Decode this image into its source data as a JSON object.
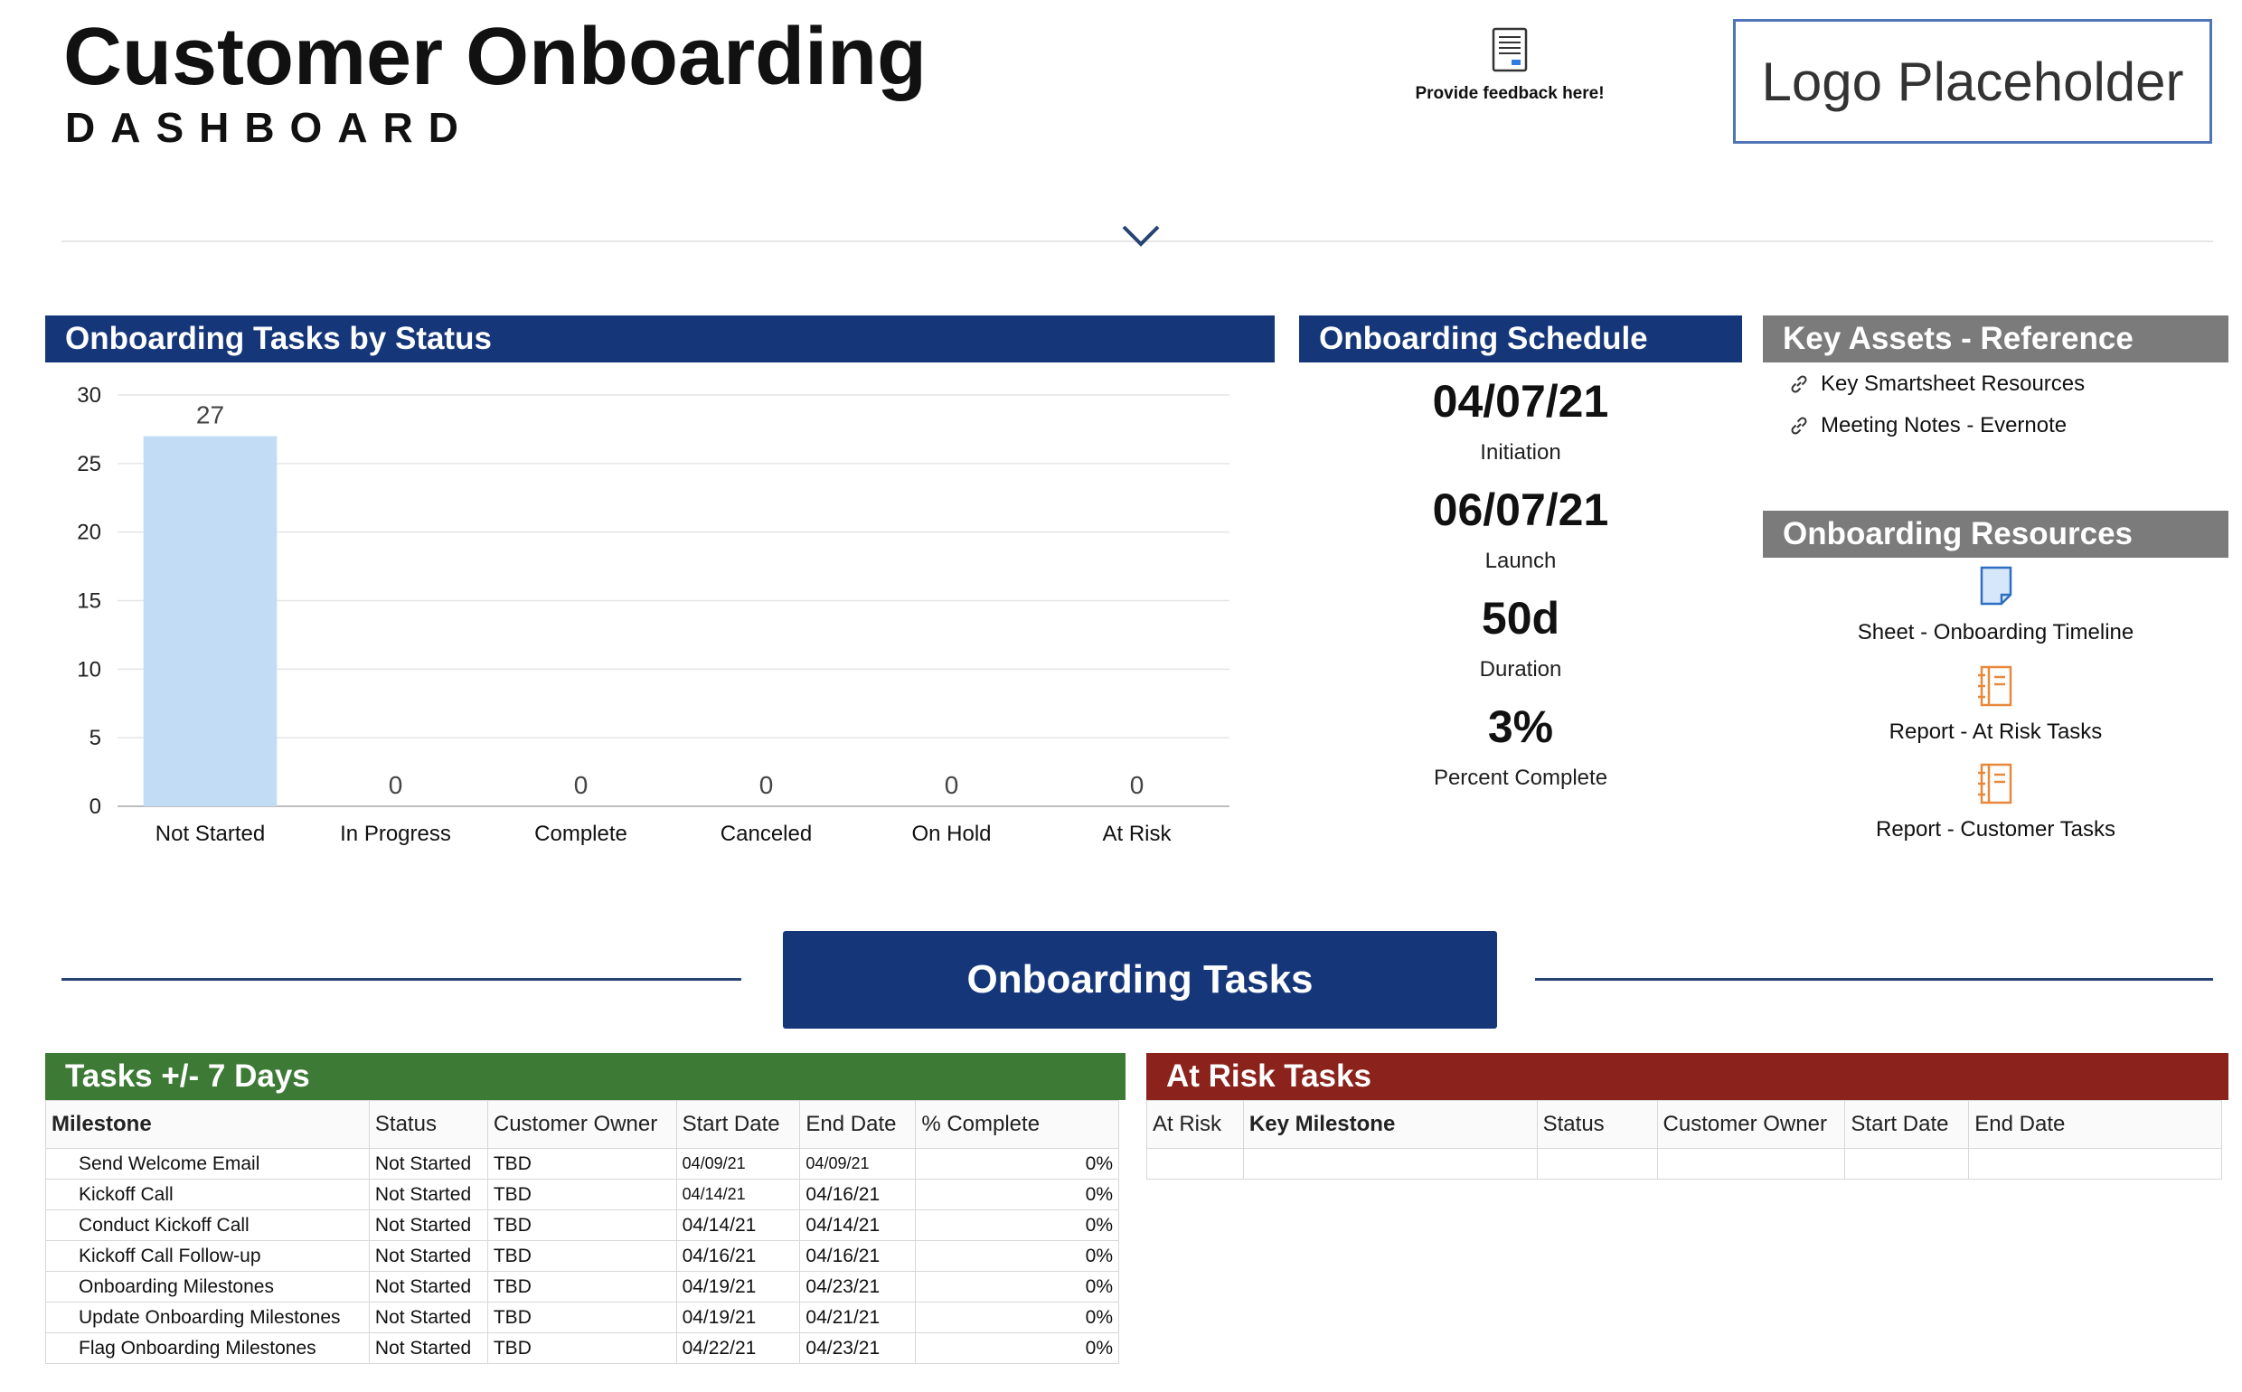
{
  "header": {
    "title": "Customer Onboarding",
    "subtitle": "DASHBOARD",
    "feedback_label": "Provide feedback here!",
    "logo_text": "Logo Placeholder"
  },
  "status_panel": {
    "title": "Onboarding Tasks by Status"
  },
  "chart_data": {
    "type": "bar",
    "categories": [
      "Not Started",
      "In Progress",
      "Complete",
      "Canceled",
      "On Hold",
      "At Risk"
    ],
    "values": [
      27,
      0,
      0,
      0,
      0,
      0
    ],
    "ylim": [
      0,
      30
    ],
    "yticks": [
      0,
      5,
      10,
      15,
      20,
      25,
      30
    ],
    "bar_color": "#c2dcf6",
    "grid": true,
    "legend": "none"
  },
  "schedule": {
    "title": "Onboarding Schedule",
    "items": [
      {
        "value": "04/07/21",
        "label": "Initiation"
      },
      {
        "value": "06/07/21",
        "label": "Launch"
      },
      {
        "value": "50d",
        "label": "Duration"
      },
      {
        "value": "3%",
        "label": "Percent Complete"
      }
    ]
  },
  "key_assets": {
    "title": "Key Assets - Reference",
    "links": [
      "Key Smartsheet Resources",
      "Meeting Notes - Evernote"
    ]
  },
  "resources": {
    "title": "Onboarding Resources",
    "items": [
      {
        "icon": "sheet-icon",
        "label": "Sheet - Onboarding Timeline"
      },
      {
        "icon": "report-icon",
        "label": "Report - At Risk Tasks"
      },
      {
        "icon": "report-icon",
        "label": "Report - Customer Tasks"
      }
    ]
  },
  "banner": {
    "label": "Onboarding Tasks"
  },
  "tasks7": {
    "title": "Tasks +/- 7 Days",
    "columns": [
      "Milestone",
      "Status",
      "Customer Owner",
      "Start Date",
      "End Date",
      "% Complete"
    ],
    "rows": [
      [
        "Send Welcome Email",
        "Not Started",
        "TBD",
        "04/09/21",
        "04/09/21",
        "0%"
      ],
      [
        "Kickoff Call",
        "Not Started",
        "TBD",
        "04/14/21",
        "04/16/21",
        "0%"
      ],
      [
        "Conduct Kickoff Call",
        "Not Started",
        "TBD",
        "04/14/21",
        "04/14/21",
        "0%"
      ],
      [
        "Kickoff Call Follow-up",
        "Not Started",
        "TBD",
        "04/16/21",
        "04/16/21",
        "0%"
      ],
      [
        "Onboarding Milestones",
        "Not Started",
        "TBD",
        "04/19/21",
        "04/23/21",
        "0%"
      ],
      [
        "Update Onboarding Milestones",
        "Not Started",
        "TBD",
        "04/19/21",
        "04/21/21",
        "0%"
      ],
      [
        "Flag Onboarding Milestones",
        "Not Started",
        "TBD",
        "04/22/21",
        "04/23/21",
        "0%"
      ]
    ]
  },
  "atrisk": {
    "title": "At Risk Tasks",
    "columns": [
      "At Risk",
      "Key Milestone",
      "Status",
      "Customer Owner",
      "Start Date",
      "End Date"
    ]
  },
  "colors": {
    "navy": "#15377a",
    "gray": "#7b7b7b",
    "green": "#3d7a36",
    "red": "#8b231c",
    "orange": "#e8883a"
  }
}
